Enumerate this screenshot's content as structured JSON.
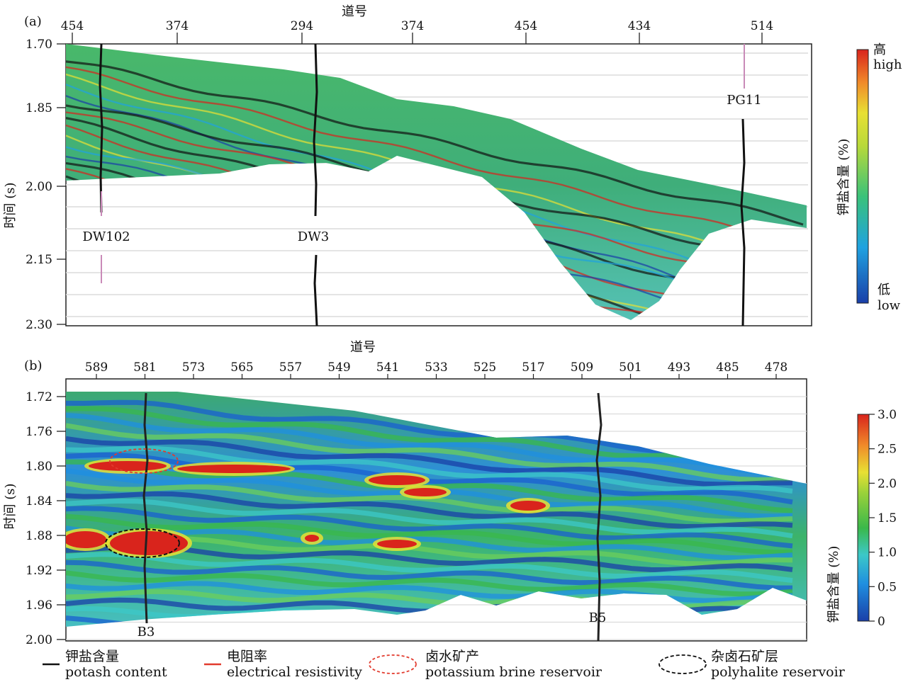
{
  "chart_data": [
    {
      "panel": "(a)",
      "type": "heatmap",
      "title": "",
      "xlabel": "道号",
      "ylabel": "时间 (s)",
      "x_tick_labels": [
        "454",
        "374",
        "294",
        "374",
        "454",
        "434",
        "514"
      ],
      "y_tick_labels": [
        "1.70",
        "1.85",
        "2.00",
        "2.15",
        "2.30"
      ],
      "ylim": [
        1.7,
        2.3
      ],
      "y_inverted": true,
      "wells": [
        "DW102",
        "DW3",
        "PG11"
      ],
      "colorbar": {
        "title": "钾盐含量 (%)",
        "high_zh": "高",
        "high_en": "high",
        "low_zh": "低",
        "low_en": "low",
        "colors": [
          "#1a3fa8",
          "#1fa2e0",
          "#3ac27a",
          "#e8e033",
          "#f08a2a",
          "#d9241c"
        ]
      }
    },
    {
      "panel": "(b)",
      "type": "heatmap",
      "title": "",
      "xlabel": "道号",
      "ylabel": "时间 (s)",
      "x_tick_labels": [
        "589",
        "581",
        "573",
        "565",
        "557",
        "549",
        "541",
        "533",
        "525",
        "517",
        "509",
        "501",
        "493",
        "485",
        "478"
      ],
      "y_tick_labels": [
        "1.72",
        "1.76",
        "1.80",
        "1.84",
        "1.88",
        "1.92",
        "1.96",
        "2.00"
      ],
      "ylim": [
        1.72,
        2.0
      ],
      "y_inverted": true,
      "wells": [
        "B3",
        "B5"
      ],
      "colorbar": {
        "title": "钾盐含量 (%)",
        "tick_labels": [
          "3.0",
          "2.5",
          "2.0",
          "1.5",
          "1.0",
          "0.5",
          "0"
        ],
        "range": [
          0,
          3.0
        ]
      }
    }
  ],
  "legend": [
    {
      "zh": "钾盐含量",
      "en": "potash content",
      "style": "black-line"
    },
    {
      "zh": "电阻率",
      "en": "electrical resistivity",
      "style": "red-line"
    },
    {
      "zh": "卤水矿产",
      "en": "potassium brine reservoir",
      "style": "red-dashed-ellipse"
    },
    {
      "zh": "杂卤石矿层",
      "en": "polyhalite reservoir",
      "style": "black-dashed-ellipse"
    }
  ]
}
